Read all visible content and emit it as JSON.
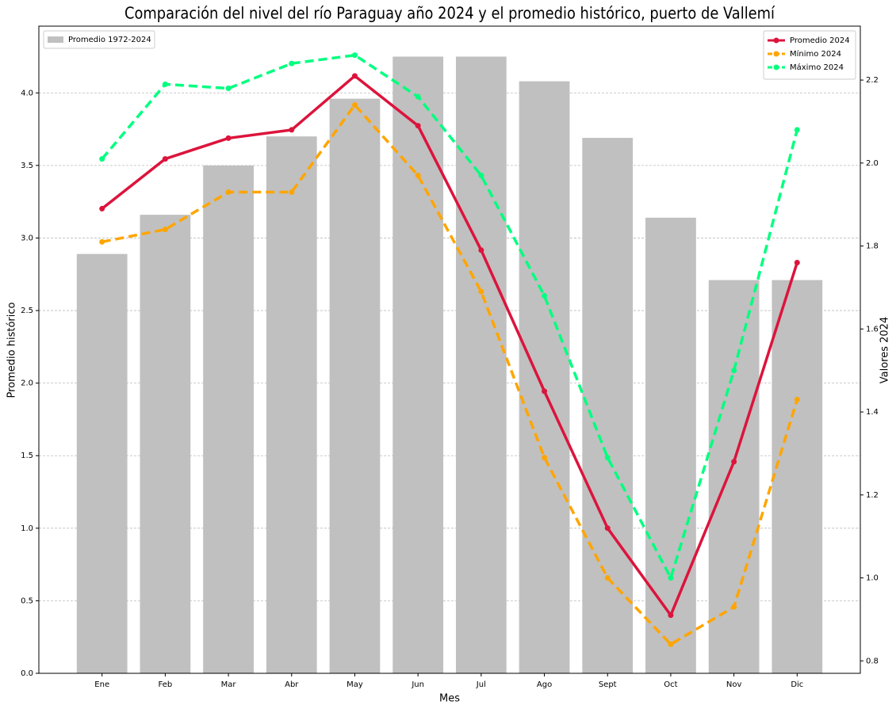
{
  "chart_data": {
    "type": "bar-line",
    "title": "Comparación del nivel del río Paraguay año 2024 y el promedio histórico, puerto de Vallemí",
    "xlabel": "Mes",
    "ylabel": "Promedio histórico",
    "y2label": "Valores 2024",
    "categories": [
      "Ene",
      "Feb",
      "Mar",
      "Abr",
      "May",
      "Jun",
      "Jul",
      "Ago",
      "Sept",
      "Oct",
      "Nov",
      "Dic"
    ],
    "bars": {
      "name": "Promedio 1972-2024",
      "color": "#c0c0c0",
      "values": [
        2.89,
        3.16,
        3.5,
        3.7,
        3.96,
        4.25,
        4.25,
        4.08,
        3.69,
        3.14,
        2.71,
        2.71
      ]
    },
    "series": [
      {
        "name": "Promedio 2024",
        "color": "#dc143c",
        "linestyle": "solid",
        "axis": "y2",
        "values": [
          1.89,
          2.01,
          2.06,
          2.08,
          2.21,
          2.09,
          1.79,
          1.45,
          1.12,
          0.91,
          1.28,
          1.76
        ]
      },
      {
        "name": "Mínimo 2024",
        "color": "#ffa500",
        "linestyle": "dashed",
        "axis": "y2",
        "values": [
          1.81,
          1.84,
          1.93,
          1.93,
          2.14,
          1.97,
          1.69,
          1.29,
          1.0,
          0.84,
          0.93,
          1.43
        ]
      },
      {
        "name": "Máximo 2024",
        "color": "#00ff7f",
        "linestyle": "dashed",
        "axis": "y2",
        "values": [
          2.01,
          2.19,
          2.18,
          2.24,
          2.26,
          2.16,
          1.97,
          1.68,
          1.29,
          1.0,
          1.5,
          2.08
        ]
      }
    ],
    "ylim": [
      0,
      4.46
    ],
    "yticks": [
      {
        "value": 0,
        "label": "0.0"
      },
      0.5,
      {
        "value": 1,
        "label": "1.0"
      },
      1.5,
      {
        "value": 2,
        "label": "2.0"
      },
      2.5,
      {
        "value": 3,
        "label": "3.0"
      },
      3.5,
      {
        "value": 4,
        "label": "4.0"
      }
    ],
    "y2lim": [
      0.77,
      2.33
    ],
    "y2ticks": [
      0.8,
      {
        "value": 1,
        "label": "1.0"
      },
      1.2,
      1.4,
      1.6,
      1.8,
      {
        "value": 2,
        "label": "2.0"
      },
      2.2
    ],
    "grid": true,
    "bar_legend": "upper left",
    "line_legend": "upper right"
  }
}
